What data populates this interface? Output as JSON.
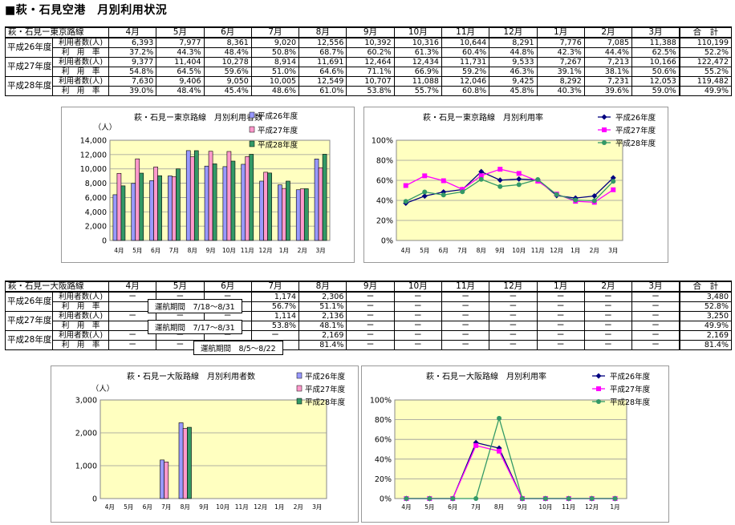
{
  "page_title": "■萩・石見空港　月別利用状況",
  "months": [
    "4月",
    "5月",
    "6月",
    "7月",
    "8月",
    "9月",
    "10月",
    "11月",
    "12月",
    "1月",
    "2月",
    "3月"
  ],
  "total_label": "合　計",
  "row_users_label": "利用者数(人)",
  "row_rate_label": "利　用　率",
  "tokyo": {
    "route": "萩・石見ー東京路線",
    "rows": [
      {
        "year": "平成26年度",
        "users": [
          "6,393",
          "7,977",
          "8,361",
          "9,020",
          "12,556",
          "10,392",
          "10,316",
          "10,644",
          "8,291",
          "7,776",
          "7,085",
          "11,388"
        ],
        "users_total": "110,199",
        "rate": [
          "37.2%",
          "44.3%",
          "48.4%",
          "50.8%",
          "68.7%",
          "60.2%",
          "61.3%",
          "60.4%",
          "44.8%",
          "42.3%",
          "44.4%",
          "62.5%"
        ],
        "rate_total": "52.2%"
      },
      {
        "year": "平成27年度",
        "users": [
          "9,377",
          "11,404",
          "10,278",
          "8,914",
          "11,691",
          "12,464",
          "12,434",
          "11,731",
          "9,533",
          "7,267",
          "7,213",
          "10,166"
        ],
        "users_total": "122,472",
        "rate": [
          "54.8%",
          "64.5%",
          "59.6%",
          "51.0%",
          "64.6%",
          "71.1%",
          "66.9%",
          "59.2%",
          "46.3%",
          "39.1%",
          "38.1%",
          "50.6%"
        ],
        "rate_total": "55.2%"
      },
      {
        "year": "平成28年度",
        "users": [
          "7,630",
          "9,406",
          "9,050",
          "10,005",
          "12,549",
          "10,707",
          "11,088",
          "12,046",
          "9,425",
          "8,292",
          "7,231",
          "12,053"
        ],
        "users_total": "119,482",
        "rate": [
          "39.0%",
          "48.4%",
          "45.4%",
          "48.6%",
          "61.0%",
          "53.8%",
          "55.7%",
          "60.8%",
          "45.8%",
          "40.3%",
          "39.6%",
          "59.0%"
        ],
        "rate_total": "49.9%"
      }
    ]
  },
  "osaka": {
    "route": "萩・石見ー大阪路線",
    "rows": [
      {
        "year": "平成26年度",
        "users": [
          "ー",
          "ー",
          "ー",
          "1,174",
          "2,306",
          "ー",
          "ー",
          "ー",
          "ー",
          "ー",
          "ー",
          "ー"
        ],
        "users_total": "3,480",
        "rate": [
          "",
          "",
          "",
          "56.7%",
          "51.1%",
          "ー",
          "ー",
          "ー",
          "ー",
          "ー",
          "ー",
          "ー"
        ],
        "rate_total": "52.8%",
        "period": "運航期間　7/18～8/31"
      },
      {
        "year": "平成27年度",
        "users": [
          "ー",
          "ー",
          "ー",
          "1,114",
          "2,136",
          "ー",
          "ー",
          "ー",
          "ー",
          "ー",
          "ー",
          "ー"
        ],
        "users_total": "3,250",
        "rate": [
          "",
          "",
          "",
          "53.8%",
          "48.1%",
          "ー",
          "ー",
          "ー",
          "ー",
          "ー",
          "ー",
          "ー"
        ],
        "rate_total": "49.9%",
        "period": "運航期間　7/17～8/31"
      },
      {
        "year": "平成28年度",
        "users": [
          "ー",
          "ー",
          "ー",
          "ー",
          "2,169",
          "ー",
          "ー",
          "ー",
          "ー",
          "ー",
          "ー",
          "ー"
        ],
        "users_total": "2,169",
        "rate": [
          "ー",
          "ー",
          "ー",
          "ー",
          "81.4%",
          "ー",
          "ー",
          "ー",
          "ー",
          "ー",
          "ー",
          "ー"
        ],
        "rate_total": "81.4%",
        "period": "運航期間　8/5～8/22"
      }
    ]
  },
  "colors": {
    "plot_bg": "#ffffc0",
    "s26_bar": "#9999ff",
    "s27_bar": "#ff99cc",
    "s28_bar": "#339966",
    "s26_line": "#000080",
    "s27_line": "#ff00ff",
    "s28_line": "#339966"
  },
  "chart_data": [
    {
      "type": "bar",
      "title": "萩・石見ー東京路線　月別利用者数",
      "unit": "（人）",
      "categories": [
        "4月",
        "5月",
        "6月",
        "7月",
        "8月",
        "9月",
        "10月",
        "11月",
        "12月",
        "1月",
        "2月",
        "3月"
      ],
      "yticks": [
        "0",
        "2,000",
        "4,000",
        "6,000",
        "8,000",
        "10,000",
        "12,000",
        "14,000"
      ],
      "ylim": [
        0,
        14000
      ],
      "legend": "top-right",
      "series": [
        {
          "name": "平成26年度",
          "values": [
            6393,
            7977,
            8361,
            9020,
            12556,
            10392,
            10316,
            10644,
            8291,
            7776,
            7085,
            11388
          ]
        },
        {
          "name": "平成27年度",
          "values": [
            9377,
            11404,
            10278,
            8914,
            11691,
            12464,
            12434,
            11731,
            9533,
            7267,
            7213,
            10166
          ]
        },
        {
          "name": "平成28年度",
          "values": [
            7630,
            9406,
            9050,
            10005,
            12549,
            10707,
            11088,
            12046,
            9425,
            8292,
            7231,
            12053
          ]
        }
      ]
    },
    {
      "type": "line",
      "title": "萩・石見ー東京路線　月別利用率",
      "categories": [
        "4月",
        "5月",
        "6月",
        "7月",
        "8月",
        "9月",
        "10月",
        "11月",
        "12月",
        "1月",
        "2月",
        "3月"
      ],
      "yticks": [
        "0%",
        "20%",
        "40%",
        "60%",
        "80%",
        "100%"
      ],
      "ylim": [
        0,
        100
      ],
      "legend": "top-right",
      "series": [
        {
          "name": "平成26年度",
          "values": [
            37.2,
            44.3,
            48.4,
            50.8,
            68.7,
            60.2,
            61.3,
            60.4,
            44.8,
            42.3,
            44.4,
            62.5
          ]
        },
        {
          "name": "平成27年度",
          "values": [
            54.8,
            64.5,
            59.6,
            51.0,
            64.6,
            71.1,
            66.9,
            59.2,
            46.3,
            39.1,
            38.1,
            50.6
          ]
        },
        {
          "name": "平成28年度",
          "values": [
            39.0,
            48.4,
            45.4,
            48.6,
            61.0,
            53.8,
            55.7,
            60.8,
            45.8,
            40.3,
            39.6,
            59.0
          ]
        }
      ]
    },
    {
      "type": "bar",
      "title": "萩・石見ー大阪路線　月別利用者数",
      "unit": "（人）",
      "categories": [
        "4月",
        "5月",
        "6月",
        "7月",
        "8月",
        "9月",
        "10月",
        "11月",
        "12月",
        "1月",
        "2月",
        "3月"
      ],
      "yticks": [
        "0",
        "1,000",
        "2,000",
        "3,000"
      ],
      "ylim": [
        0,
        3000
      ],
      "legend": "top-right",
      "series": [
        {
          "name": "平成26年度",
          "values": [
            0,
            0,
            0,
            1174,
            2306,
            0,
            0,
            0,
            0,
            0,
            0,
            0
          ]
        },
        {
          "name": "平成27年度",
          "values": [
            0,
            0,
            0,
            1114,
            2136,
            0,
            0,
            0,
            0,
            0,
            0,
            0
          ]
        },
        {
          "name": "平成28年度",
          "values": [
            0,
            0,
            0,
            0,
            2169,
            0,
            0,
            0,
            0,
            0,
            0,
            0
          ]
        }
      ]
    },
    {
      "type": "line",
      "title": "萩・石見ー大阪路線　月別利用率",
      "categories": [
        "4月",
        "5月",
        "6月",
        "7月",
        "8月",
        "9月",
        "10月",
        "11月",
        "12月",
        "1月"
      ],
      "yticks": [
        "0%",
        "20%",
        "40%",
        "60%",
        "80%",
        "100%"
      ],
      "ylim": [
        0,
        100
      ],
      "legend": "top-right",
      "series": [
        {
          "name": "平成26年度",
          "values": [
            0,
            0,
            0,
            56.7,
            51.1,
            0,
            0,
            0,
            0,
            0
          ]
        },
        {
          "name": "平成27年度",
          "values": [
            0,
            0,
            0,
            53.8,
            48.1,
            0,
            0,
            0,
            0,
            0
          ]
        },
        {
          "name": "平成28年度",
          "values": [
            0,
            0,
            0,
            0,
            81.4,
            0,
            0,
            0,
            0,
            0
          ]
        }
      ]
    }
  ]
}
